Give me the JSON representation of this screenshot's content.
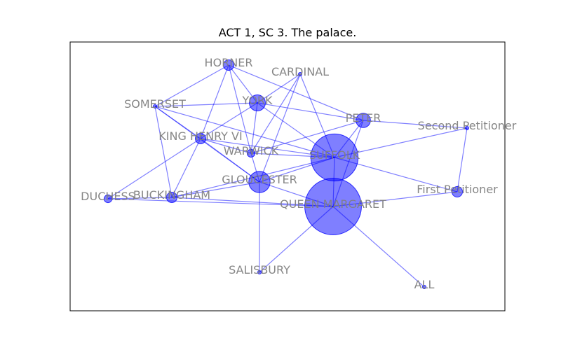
{
  "title": "ACT 1, SC 3. The palace.",
  "colors": {
    "node": "#0000ff",
    "edge": "#0000ff",
    "label": "#808080",
    "frame": "#000000"
  },
  "nodes": [
    {
      "id": "HORNER",
      "label": "HORNER",
      "weight": 2
    },
    {
      "id": "CARDINAL",
      "label": "CARDINAL",
      "weight": 0
    },
    {
      "id": "SOMERSET",
      "label": "SOMERSET",
      "weight": 0
    },
    {
      "id": "YORK",
      "label": "YORK",
      "weight": 5
    },
    {
      "id": "PETER",
      "label": "PETER",
      "weight": 4
    },
    {
      "id": "Second Petitioner",
      "label": "Second Petitioner",
      "weight": 0
    },
    {
      "id": "KING HENRY VI",
      "label": "KING HENRY VI",
      "weight": 2
    },
    {
      "id": "WARWICK",
      "label": "WARWICK",
      "weight": 1
    },
    {
      "id": "SUFFOLK",
      "label": "SUFFOLK",
      "weight": 45
    },
    {
      "id": "GLOUCESTER",
      "label": "GLOUCESTER",
      "weight": 9
    },
    {
      "id": "DUCHESS",
      "label": "DUCHESS",
      "weight": 1
    },
    {
      "id": "BUCKINGHAM",
      "label": "BUCKINGHAM",
      "weight": 2
    },
    {
      "id": "First Petitioner",
      "label": "First Petitioner",
      "weight": 2
    },
    {
      "id": "QUEEN MARGARET",
      "label": "QUEEN MARGARET",
      "weight": 65
    },
    {
      "id": "SALISBURY",
      "label": "SALISBURY",
      "weight": 0
    },
    {
      "id": "ALL",
      "label": "ALL",
      "weight": 0
    }
  ],
  "edges": [
    [
      "HORNER",
      "SOMERSET"
    ],
    [
      "HORNER",
      "YORK"
    ],
    [
      "HORNER",
      "KING HENRY VI"
    ],
    [
      "HORNER",
      "WARWICK"
    ],
    [
      "HORNER",
      "PETER"
    ],
    [
      "CARDINAL",
      "YORK"
    ],
    [
      "CARDINAL",
      "SUFFOLK"
    ],
    [
      "CARDINAL",
      "WARWICK"
    ],
    [
      "CARDINAL",
      "GLOUCESTER"
    ],
    [
      "SOMERSET",
      "YORK"
    ],
    [
      "SOMERSET",
      "KING HENRY VI"
    ],
    [
      "SOMERSET",
      "BUCKINGHAM"
    ],
    [
      "SOMERSET",
      "GLOUCESTER"
    ],
    [
      "SOMERSET",
      "SUFFOLK"
    ],
    [
      "YORK",
      "KING HENRY VI"
    ],
    [
      "YORK",
      "PETER"
    ],
    [
      "YORK",
      "SUFFOLK"
    ],
    [
      "YORK",
      "WARWICK"
    ],
    [
      "PETER",
      "Second Petitioner"
    ],
    [
      "PETER",
      "SUFFOLK"
    ],
    [
      "PETER",
      "WARWICK"
    ],
    [
      "PETER",
      "QUEEN MARGARET"
    ],
    [
      "Second Petitioner",
      "SUFFOLK"
    ],
    [
      "Second Petitioner",
      "First Petitioner"
    ],
    [
      "KING HENRY VI",
      "WARWICK"
    ],
    [
      "KING HENRY VI",
      "GLOUCESTER"
    ],
    [
      "KING HENRY VI",
      "BUCKINGHAM"
    ],
    [
      "KING HENRY VI",
      "SUFFOLK"
    ],
    [
      "KING HENRY VI",
      "DUCHESS"
    ],
    [
      "WARWICK",
      "SUFFOLK"
    ],
    [
      "WARWICK",
      "GLOUCESTER"
    ],
    [
      "SUFFOLK",
      "GLOUCESTER"
    ],
    [
      "SUFFOLK",
      "QUEEN MARGARET"
    ],
    [
      "SUFFOLK",
      "First Petitioner"
    ],
    [
      "SUFFOLK",
      "BUCKINGHAM"
    ],
    [
      "GLOUCESTER",
      "BUCKINGHAM"
    ],
    [
      "GLOUCESTER",
      "SALISBURY"
    ],
    [
      "GLOUCESTER",
      "QUEEN MARGARET"
    ],
    [
      "DUCHESS",
      "BUCKINGHAM"
    ],
    [
      "DUCHESS",
      "QUEEN MARGARET"
    ],
    [
      "BUCKINGHAM",
      "QUEEN MARGARET"
    ],
    [
      "First Petitioner",
      "QUEEN MARGARET"
    ],
    [
      "QUEEN MARGARET",
      "SALISBURY"
    ],
    [
      "QUEEN MARGARET",
      "ALL"
    ]
  ]
}
